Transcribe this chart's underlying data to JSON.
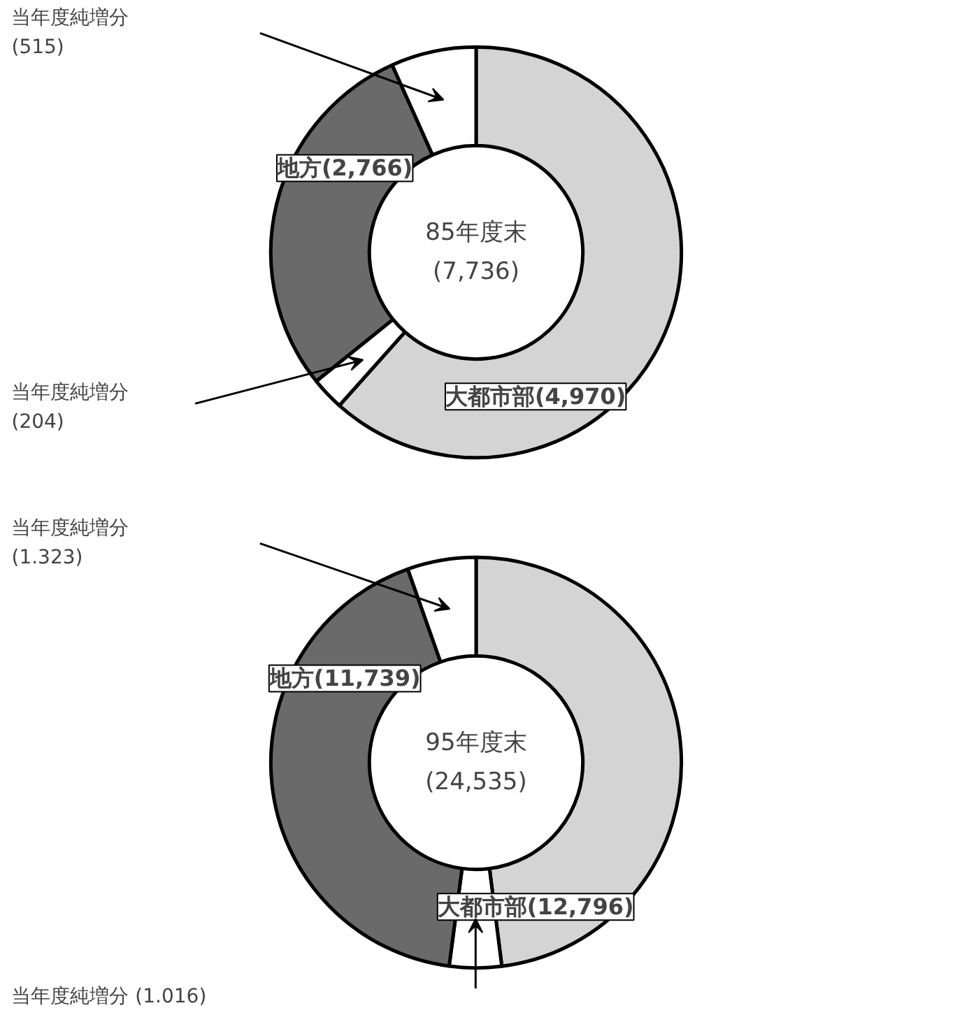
{
  "chart_data": [
    {
      "type": "donut",
      "title": "85年度末\n(7,736)",
      "categories": [
        null,
        null,
        null,
        null
      ],
      "values": [
        61.6,
        2.6,
        29.1,
        6.7
      ],
      "colors": [
        "#d4d4d4",
        "#ffffff",
        "#6a6a6a",
        "#ffffff"
      ],
      "annotations": [
        "大都市部(4,970)",
        "地方(2,766)",
        "当年度純増分\n(515)",
        "当年度純増分\n(204)"
      ]
    },
    {
      "type": "donut",
      "title": "95年度末\n(24,535)",
      "categories": [
        null,
        null,
        null,
        null
      ],
      "values": [
        48.0,
        4.1,
        42.5,
        5.4
      ],
      "colors": [
        "#d4d4d4",
        "#ffffff",
        "#6a6a6a",
        "#ffffff"
      ],
      "annotations": [
        "大都市部(12,796)",
        "地方(11,739)",
        "当年度純増分\n(1.323)",
        "当年度純増分 (1.016)"
      ]
    }
  ]
}
